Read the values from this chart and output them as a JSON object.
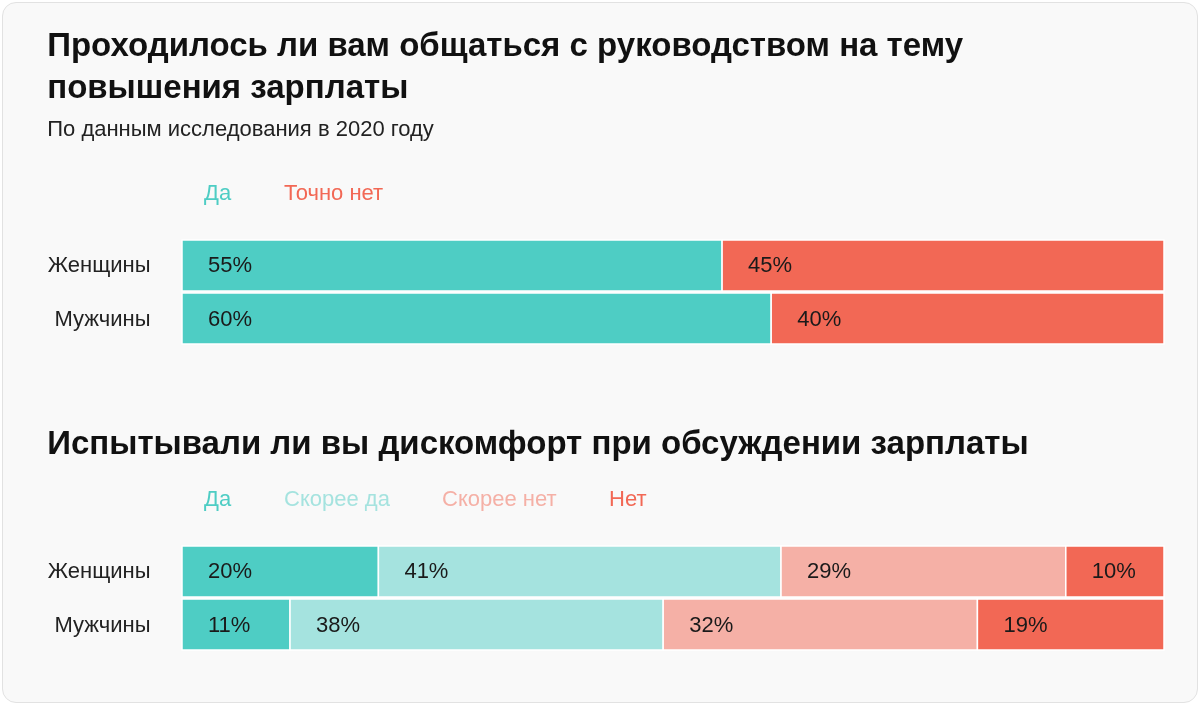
{
  "chart_data": [
    {
      "type": "bar",
      "orientation": "horizontal",
      "stacked": true,
      "title": "Проходилось ли вам общаться с руководством на тему повышения зарплаты",
      "subtitle": "По данным исследования в 2020 году",
      "categories": [
        "Женщины",
        "Мужчины"
      ],
      "legend": "top left",
      "series": [
        {
          "name": "Да",
          "color": "#4ecdc4",
          "values": [
            55,
            60
          ],
          "value_labels": [
            "55%",
            "60%"
          ]
        },
        {
          "name": "Точно нет",
          "color": "#f26855",
          "values": [
            45,
            40
          ],
          "value_labels": [
            "45%",
            "40%"
          ]
        }
      ]
    },
    {
      "type": "bar",
      "orientation": "horizontal",
      "stacked": true,
      "title": "Испытывали ли вы дискомфорт при обсуждении зарплаты",
      "categories": [
        "Женщины",
        "Мужчины"
      ],
      "legend": "top left",
      "series": [
        {
          "name": "Да",
          "color": "#4ecdc4",
          "values": [
            20,
            11
          ],
          "value_labels": [
            "20%",
            "11%"
          ]
        },
        {
          "name": "Скорее да",
          "color": "#a5e3df",
          "values": [
            41,
            38
          ],
          "value_labels": [
            "41%",
            "38%"
          ]
        },
        {
          "name": "Скорее нет",
          "color": "#f5b0a6",
          "values": [
            29,
            32
          ],
          "value_labels": [
            "29%",
            "32%"
          ]
        },
        {
          "name": "Нет",
          "color": "#f26855",
          "values": [
            10,
            19
          ],
          "value_labels": [
            "10%",
            "19%"
          ]
        }
      ]
    }
  ]
}
